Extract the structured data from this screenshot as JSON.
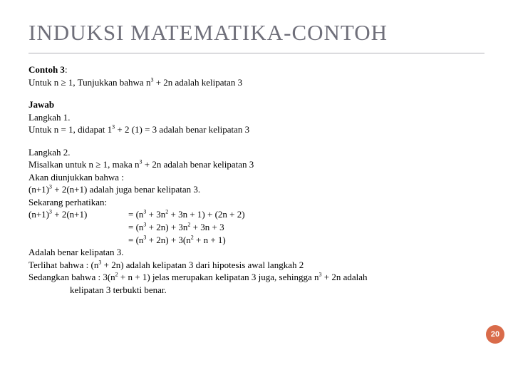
{
  "title": "INDUKSI MATEMATIKA-CONTOH",
  "pageNumber": "20",
  "colors": {
    "title": "#6f6f7a",
    "titleBorder": "#b0b0b8",
    "bodyText": "#000000",
    "background": "#ffffff",
    "pageBadgeBg": "#d96b4a",
    "pageBadgeText": "#ffffff"
  },
  "contoh": {
    "label": "Contoh 3",
    "line1_a": "Untuk n ≥ 1, Tunjukkan bahwa n",
    "line1_sup": "3",
    "line1_b": " + 2n adalah kelipatan 3"
  },
  "jawab": {
    "label": "Jawab",
    "langkah1_label": "Langkah 1.",
    "langkah1_a": "Untuk n = 1, didapat 1",
    "langkah1_sup": "3",
    "langkah1_b": " + 2 (1) = 3 adalah benar kelipatan 3"
  },
  "langkah2": {
    "label": "Langkah 2.",
    "l1_a": "Misalkan untuk n ≥ 1, maka n",
    "l1_sup": "3",
    "l1_b": " + 2n adalah benar kelipatan 3",
    "l2": "Akan diunjukkan bahwa :",
    "l3_a": "(n+1)",
    "l3_sup": "3",
    "l3_b": " + 2(n+1) adalah juga benar kelipatan 3.",
    "l4": "Sekarang perhatikan:",
    "eq_left_a": "(n+1)",
    "eq_left_sup": "3",
    "eq_left_b": " + 2(n+1)",
    "eq1_a": "= (n",
    "eq1_s1": "3",
    "eq1_b": " + 3n",
    "eq1_s2": "2",
    "eq1_c": " + 3n + 1) + (2n + 2)",
    "eq2_a": "= (n",
    "eq2_s1": "3",
    "eq2_b": " + 2n) + 3n",
    "eq2_s2": "2",
    "eq2_c": " + 3n + 3",
    "eq3_a": "= (n",
    "eq3_s1": "3",
    "eq3_b": " + 2n) + 3(n",
    "eq3_s2": "2",
    "eq3_c": " + n + 1)",
    "l5": "Adalah benar kelipatan 3.",
    "l6_a": "Terlihat bahwa : (n",
    "l6_s1": "3",
    "l6_b": " + 2n) adalah kelipatan 3 dari hipotesis awal langkah 2",
    "l7_a": "Sedangkan bahwa : 3(n",
    "l7_s1": "2",
    "l7_b": " + n + 1) jelas merupakan kelipatan 3 juga, sehingga n",
    "l7_s2": "3",
    "l7_c": " + 2n adalah",
    "l8": "kelipatan 3 terbukti benar."
  }
}
